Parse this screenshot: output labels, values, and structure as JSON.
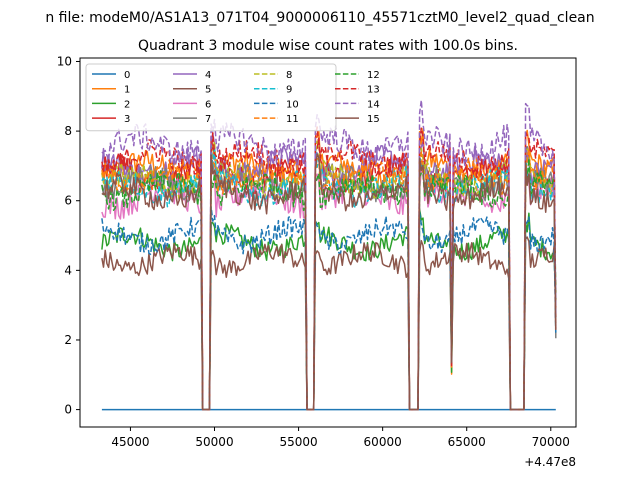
{
  "chart_data": {
    "type": "line",
    "suptitle": "n file: modeM0/AS1A13_071T04_9000006110_45571cztM0_level2_quad_clean",
    "title": "Quadrant 3 module wise count rates with 100.0s bins.",
    "xlabel": "",
    "ylabel": "",
    "x_offset_label": "+4.47e8",
    "xlim": [
      42000,
      71500
    ],
    "ylim": [
      -0.5,
      10.1
    ],
    "xticks": [
      45000,
      50000,
      55000,
      60000,
      65000,
      70000
    ],
    "xtick_labels": [
      "45000",
      "50000",
      "55000",
      "60000",
      "65000",
      "70000"
    ],
    "yticks": [
      0,
      2,
      4,
      6,
      8,
      10
    ],
    "ytick_labels": [
      "0",
      "2",
      "4",
      "6",
      "8",
      "10"
    ],
    "grid": false,
    "legend_position": "top-left",
    "legend_columns": 4,
    "x_range": [
      43300,
      70300
    ],
    "x_step": 100,
    "gaps": [
      [
        49300,
        49700
      ],
      [
        55500,
        55900
      ],
      [
        61600,
        62100
      ],
      [
        67600,
        68400
      ]
    ],
    "dips": [
      64100
    ],
    "series": [
      {
        "name": "0",
        "color": "#1f77b4",
        "dash": "solid",
        "level": 0.0,
        "noise": 0.0
      },
      {
        "name": "1",
        "color": "#ff7f0e",
        "dash": "solid",
        "level": 6.9,
        "noise": 0.35
      },
      {
        "name": "2",
        "color": "#2ca02c",
        "dash": "solid",
        "level": 4.8,
        "noise": 0.3
      },
      {
        "name": "3",
        "color": "#d62728",
        "dash": "solid",
        "level": 6.8,
        "noise": 0.35
      },
      {
        "name": "4",
        "color": "#9467bd",
        "dash": "solid",
        "level": 7.0,
        "noise": 0.35
      },
      {
        "name": "5",
        "color": "#8c564b",
        "dash": "solid",
        "level": 4.3,
        "noise": 0.3
      },
      {
        "name": "6",
        "color": "#e377c2",
        "dash": "solid",
        "level": 6.1,
        "noise": 0.4
      },
      {
        "name": "7",
        "color": "#7f7f7f",
        "dash": "solid",
        "level": 6.5,
        "noise": 0.35
      },
      {
        "name": "8",
        "color": "#bcbd22",
        "dash": "dashed",
        "level": 6.6,
        "noise": 0.35
      },
      {
        "name": "9",
        "color": "#17becf",
        "dash": "dashed",
        "level": 6.4,
        "noise": 0.35
      },
      {
        "name": "10",
        "color": "#1f77b4",
        "dash": "dashed",
        "level": 5.0,
        "noise": 0.3
      },
      {
        "name": "11",
        "color": "#ff7f0e",
        "dash": "dashed",
        "level": 6.7,
        "noise": 0.35
      },
      {
        "name": "12",
        "color": "#2ca02c",
        "dash": "dashed",
        "level": 6.3,
        "noise": 0.35
      },
      {
        "name": "13",
        "color": "#d62728",
        "dash": "dashed",
        "level": 7.2,
        "noise": 0.35
      },
      {
        "name": "14",
        "color": "#9467bd",
        "dash": "dashed",
        "level": 7.6,
        "noise": 0.4
      },
      {
        "name": "15",
        "color": "#8c564b",
        "dash": "solid",
        "level": 6.2,
        "noise": 0.35
      }
    ]
  }
}
